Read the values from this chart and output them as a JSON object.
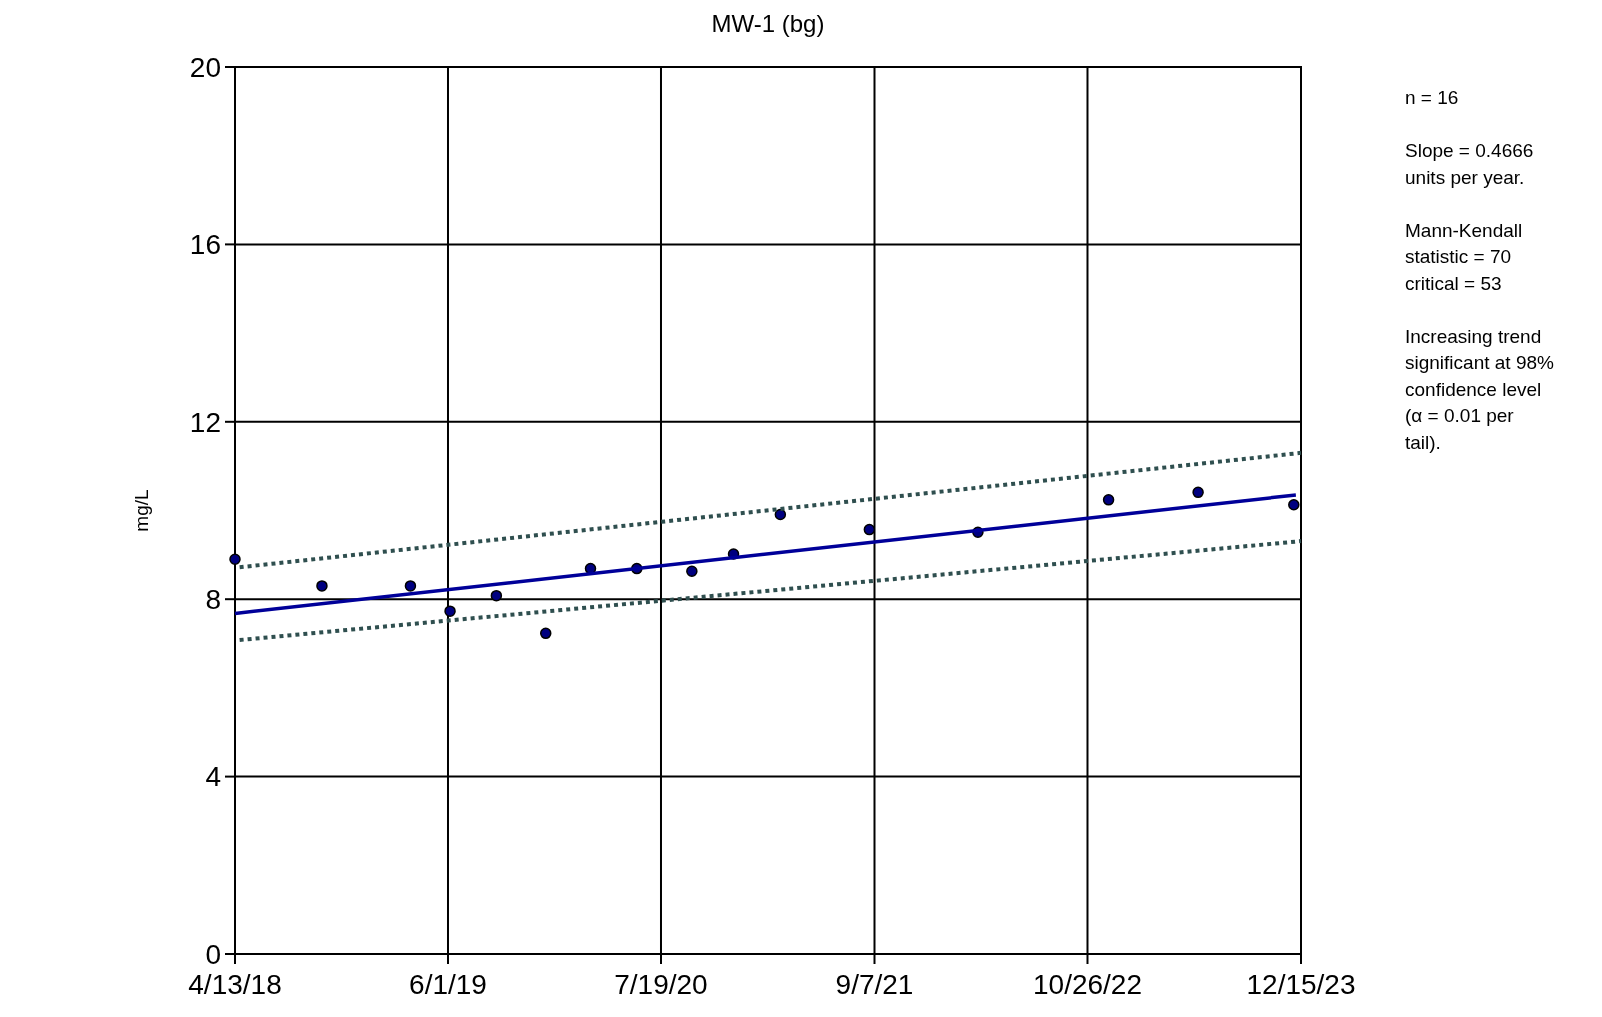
{
  "chart_data": {
    "type": "scatter",
    "title": "MW-1 (bg)",
    "ylabel": "mg/L",
    "xlim": [
      "2018-04-13",
      "2023-12-15"
    ],
    "ylim": [
      0,
      20
    ],
    "xticks": [
      {
        "value": "2018-04-13",
        "label": "4/13/18"
      },
      {
        "value": "2019-06-01",
        "label": "6/1/19"
      },
      {
        "value": "2020-07-19",
        "label": "7/19/20"
      },
      {
        "value": "2021-09-07",
        "label": "9/7/21"
      },
      {
        "value": "2022-10-26",
        "label": "10/26/22"
      },
      {
        "value": "2023-12-15",
        "label": "12/15/23"
      }
    ],
    "yticks": [
      0,
      4,
      8,
      12,
      16,
      20
    ],
    "grid": true,
    "series": [
      {
        "marker": "circle",
        "color": "#000080",
        "x": [
          "2018-04-13",
          "2018-09-29",
          "2019-03-20",
          "2019-06-05",
          "2019-09-03",
          "2019-12-08",
          "2020-03-04",
          "2020-06-02",
          "2020-09-17",
          "2020-12-07",
          "2021-03-08",
          "2021-08-28",
          "2022-03-27",
          "2022-12-06",
          "2023-05-29",
          "2023-12-01"
        ],
        "values": [
          8.9,
          8.3,
          8.3,
          7.73,
          8.08,
          7.23,
          8.69,
          8.69,
          8.63,
          9.02,
          9.91,
          9.57,
          9.51,
          10.24,
          10.41,
          10.13
        ]
      },
      {
        "type": "line",
        "line_style": "solid",
        "color": "#000099",
        "x": [
          "2018-04-13",
          "2023-12-05"
        ],
        "values": [
          7.68,
          10.35
        ]
      },
      {
        "type": "line",
        "line_style": "dotted",
        "color": "#2f4f4f",
        "x": [
          "2018-04-22",
          "2023-12-15"
        ],
        "values": [
          8.72,
          11.3
        ]
      },
      {
        "type": "line",
        "line_style": "dotted",
        "color": "#2f4f4f",
        "x": [
          "2018-04-22",
          "2023-12-15"
        ],
        "values": [
          7.08,
          9.31
        ]
      }
    ],
    "annotations": [
      "n = 16",
      "Slope = 0.4666\nunits per year.",
      "Mann-Kendall\nstatistic = 70\ncritical = 53",
      "Increasing trend\nsignificant at 98%\nconfidence level\n(α = 0.01 per\ntail)."
    ]
  }
}
